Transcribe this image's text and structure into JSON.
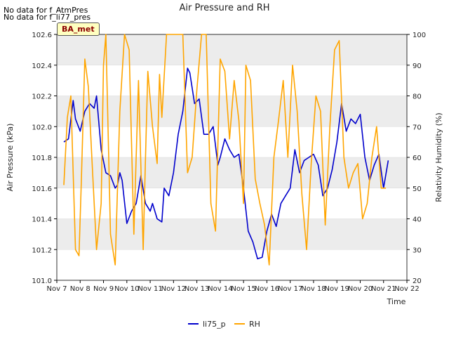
{
  "notes": [
    "No data for f_AtmPres",
    "No data for f_li77_pres"
  ],
  "badge": "BA_met",
  "colors": {
    "li75_p": "#0000cc",
    "RH": "#ffa500",
    "band": "#ececec"
  },
  "chart_data": {
    "type": "line",
    "title": "Air Pressure and RH",
    "xlabel": "Time",
    "ylabel": "Air Pressure (kPa)",
    "y2label": "Relativity Humidity (%)",
    "x_ticks": [
      "Nov 7",
      "Nov 8",
      "Nov 9",
      "Nov 10",
      "Nov 11",
      "Nov 12",
      "Nov 13",
      "Nov 14",
      "Nov 15",
      "Nov 16",
      "Nov 17",
      "Nov 18",
      "Nov 19",
      "Nov 20",
      "Nov 21",
      "Nov 22"
    ],
    "xlim": [
      7,
      22
    ],
    "ylim": [
      101.0,
      102.6
    ],
    "y_ticks": [
      "101.0",
      "101.2",
      "101.4",
      "101.6",
      "101.8",
      "102.0",
      "102.2",
      "102.4",
      "102.6"
    ],
    "y2lim": [
      20,
      100
    ],
    "y2_ticks": [
      "20",
      "30",
      "40",
      "50",
      "60",
      "70",
      "80",
      "90",
      "100"
    ],
    "grid": true,
    "legend_position": "bottom-center",
    "series": [
      {
        "name": "li75_p",
        "axis": "left",
        "x": [
          7.3,
          7.5,
          7.7,
          7.8,
          8.0,
          8.2,
          8.4,
          8.6,
          8.7,
          8.9,
          9.1,
          9.3,
          9.5,
          9.6,
          9.7,
          9.8,
          10.0,
          10.2,
          10.4,
          10.6,
          10.8,
          11.0,
          11.1,
          11.3,
          11.5,
          11.6,
          11.8,
          12.0,
          12.2,
          12.4,
          12.6,
          12.7,
          12.9,
          13.1,
          13.3,
          13.5,
          13.7,
          13.9,
          14.0,
          14.2,
          14.4,
          14.6,
          14.8,
          15.0,
          15.2,
          15.4,
          15.6,
          15.8,
          16.0,
          16.2,
          16.4,
          16.6,
          16.8,
          17.0,
          17.2,
          17.4,
          17.6,
          17.8,
          18.0,
          18.2,
          18.4,
          18.6,
          18.8,
          19.0,
          19.2,
          19.4,
          19.6,
          19.8,
          20.0,
          20.2,
          20.4,
          20.6,
          20.8,
          21.0,
          21.2
        ],
        "y": [
          101.9,
          101.92,
          102.17,
          102.05,
          101.97,
          102.1,
          102.15,
          102.12,
          102.2,
          101.85,
          101.7,
          101.68,
          101.6,
          101.62,
          101.7,
          101.65,
          101.37,
          101.45,
          101.5,
          101.68,
          101.5,
          101.45,
          101.5,
          101.4,
          101.38,
          101.6,
          101.55,
          101.7,
          101.95,
          102.1,
          102.38,
          102.35,
          102.15,
          102.18,
          101.95,
          101.95,
          102.0,
          101.75,
          101.8,
          101.92,
          101.85,
          101.8,
          101.82,
          101.6,
          101.32,
          101.25,
          101.14,
          101.15,
          101.32,
          101.43,
          101.35,
          101.5,
          101.55,
          101.6,
          101.85,
          101.7,
          101.78,
          101.8,
          101.82,
          101.75,
          101.55,
          101.6,
          101.72,
          101.9,
          102.15,
          101.97,
          102.05,
          102.02,
          102.08,
          101.8,
          101.65,
          101.75,
          101.82,
          101.6,
          101.78
        ]
      },
      {
        "name": "RH",
        "axis": "right",
        "x": [
          7.3,
          7.45,
          7.6,
          7.8,
          7.95,
          8.05,
          8.2,
          8.35,
          8.5,
          8.7,
          8.9,
          9.0,
          9.1,
          9.3,
          9.5,
          9.7,
          9.9,
          10.1,
          10.3,
          10.5,
          10.7,
          10.8,
          10.9,
          11.1,
          11.3,
          11.4,
          11.5,
          11.7,
          11.9,
          12.0,
          12.2,
          12.4,
          12.6,
          12.8,
          13.0,
          13.2,
          13.4,
          13.6,
          13.8,
          14.0,
          14.2,
          14.4,
          14.6,
          14.8,
          15.0,
          15.1,
          15.3,
          15.5,
          15.7,
          15.9,
          16.1,
          16.3,
          16.5,
          16.7,
          16.9,
          17.1,
          17.3,
          17.5,
          17.7,
          17.9,
          18.1,
          18.3,
          18.5,
          18.7,
          18.9,
          19.1,
          19.3,
          19.5,
          19.7,
          19.9,
          20.1,
          20.3,
          20.5,
          20.7,
          20.9,
          21.1
        ],
        "y": [
          51,
          73,
          80,
          30,
          28,
          52,
          92,
          83,
          60,
          30,
          45,
          90,
          100,
          35,
          25,
          75,
          100,
          95,
          35,
          85,
          30,
          60,
          88,
          70,
          58,
          87,
          73,
          100,
          100,
          100,
          100,
          100,
          55,
          60,
          82,
          100,
          100,
          45,
          36,
          92,
          88,
          66,
          85,
          72,
          45,
          90,
          85,
          53,
          45,
          38,
          25,
          60,
          72,
          85,
          60,
          90,
          75,
          48,
          30,
          58,
          80,
          75,
          38,
          70,
          95,
          98,
          60,
          50,
          55,
          58,
          40,
          45,
          60,
          70,
          50,
          50
        ]
      }
    ]
  }
}
